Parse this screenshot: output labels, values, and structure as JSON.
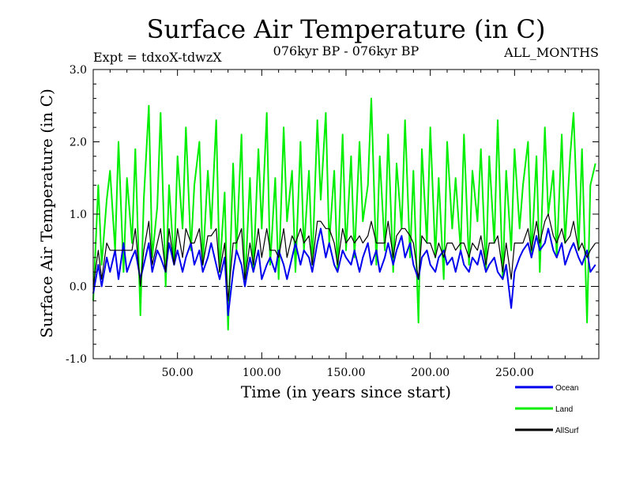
{
  "chart_data": {
    "type": "line",
    "title": "Surface Air Temperature (in C)",
    "subtitle_left": "Expt = tdxoX-tdwzX",
    "subtitle_center": "076kyr BP - 076kyr BP",
    "subtitle_right": "ALL_MONTHS",
    "xlabel": "Time (in years since start)",
    "ylabel": "Surface Air Temperature (in C)",
    "xlim": [
      0,
      300
    ],
    "ylim": [
      -1.0,
      3.0
    ],
    "xticks": [
      50,
      100,
      150,
      200,
      250
    ],
    "xtick_labels": [
      "50.00",
      "100.00",
      "150.00",
      "200.00",
      "250.00"
    ],
    "yticks": [
      -1,
      0,
      1,
      2,
      3
    ],
    "ytick_labels": [
      "-1.0",
      "0.0",
      "1.0",
      "2.0",
      "3.0"
    ],
    "zero_line": true,
    "grid": false,
    "legend_position": "bottom-right",
    "series": [
      {
        "name": "Land",
        "color": "#00ee00",
        "x": [
          0,
          3,
          5,
          8,
          10,
          13,
          15,
          18,
          20,
          23,
          25,
          28,
          30,
          33,
          35,
          38,
          40,
          43,
          45,
          48,
          50,
          53,
          55,
          58,
          60,
          63,
          65,
          68,
          70,
          73,
          75,
          78,
          80,
          83,
          85,
          88,
          90,
          93,
          95,
          98,
          100,
          103,
          105,
          108,
          110,
          113,
          115,
          118,
          120,
          123,
          125,
          128,
          130,
          133,
          135,
          138,
          140,
          143,
          145,
          148,
          150,
          153,
          155,
          158,
          160,
          163,
          165,
          168,
          170,
          173,
          175,
          178,
          180,
          183,
          185,
          188,
          190,
          193,
          195,
          198,
          200,
          203,
          205,
          208,
          210,
          213,
          215,
          218,
          220,
          223,
          225,
          228,
          230,
          233,
          235,
          238,
          240,
          243,
          245,
          248,
          250,
          253,
          255,
          258,
          260,
          263,
          265,
          268,
          270,
          273,
          275,
          278,
          280,
          283,
          285,
          288,
          290,
          293,
          295,
          298
        ],
        "values": [
          -0.2,
          1.4,
          0.3,
          1.2,
          1.6,
          0.5,
          2.0,
          0.2,
          1.5,
          0.6,
          1.9,
          -0.4,
          1.2,
          2.5,
          0.4,
          1.1,
          2.4,
          0.0,
          1.4,
          0.3,
          1.8,
          0.8,
          2.2,
          0.5,
          1.4,
          2.0,
          0.3,
          1.6,
          0.8,
          2.3,
          0.2,
          1.3,
          -0.6,
          1.7,
          0.5,
          2.1,
          0.0,
          1.5,
          0.2,
          1.9,
          0.8,
          2.4,
          0.3,
          1.5,
          0.1,
          2.2,
          0.9,
          1.6,
          0.2,
          2.0,
          0.5,
          1.6,
          0.3,
          2.3,
          1.2,
          2.4,
          0.6,
          1.6,
          0.2,
          2.1,
          0.5,
          1.8,
          0.4,
          2.0,
          0.9,
          1.4,
          2.6,
          0.3,
          1.8,
          0.5,
          2.1,
          0.2,
          1.7,
          0.8,
          2.3,
          0.4,
          1.6,
          -0.5,
          1.9,
          0.6,
          2.2,
          0.4,
          1.5,
          0.1,
          2.0,
          0.8,
          1.5,
          0.5,
          2.1,
          0.3,
          1.6,
          0.9,
          1.9,
          0.2,
          1.8,
          0.6,
          2.3,
          0.1,
          1.6,
          0.5,
          1.9,
          0.8,
          1.4,
          2.0,
          0.4,
          1.8,
          0.2,
          2.2,
          1.0,
          1.6,
          0.4,
          2.1,
          0.6,
          1.8,
          2.4,
          0.5,
          1.9,
          -0.5,
          1.4,
          1.7
        ]
      },
      {
        "name": "Ocean",
        "color": "#0000ee",
        "x": [
          0,
          3,
          5,
          8,
          10,
          13,
          15,
          18,
          20,
          23,
          25,
          28,
          30,
          33,
          35,
          38,
          40,
          43,
          45,
          48,
          50,
          53,
          55,
          58,
          60,
          63,
          65,
          68,
          70,
          73,
          75,
          78,
          80,
          83,
          85,
          88,
          90,
          93,
          95,
          98,
          100,
          103,
          105,
          108,
          110,
          113,
          115,
          118,
          120,
          123,
          125,
          128,
          130,
          133,
          135,
          138,
          140,
          143,
          145,
          148,
          150,
          153,
          155,
          158,
          160,
          163,
          165,
          168,
          170,
          173,
          175,
          178,
          180,
          183,
          185,
          188,
          190,
          193,
          195,
          198,
          200,
          203,
          205,
          208,
          210,
          213,
          215,
          218,
          220,
          223,
          225,
          228,
          230,
          233,
          235,
          238,
          240,
          243,
          245,
          248,
          250,
          253,
          255,
          258,
          260,
          263,
          265,
          268,
          270,
          273,
          275,
          278,
          280,
          283,
          285,
          288,
          290,
          293,
          295,
          298
        ],
        "values": [
          -0.1,
          0.3,
          0.0,
          0.4,
          0.2,
          0.5,
          0.1,
          0.6,
          0.2,
          0.4,
          0.5,
          0.1,
          0.3,
          0.6,
          0.2,
          0.5,
          0.4,
          0.2,
          0.6,
          0.3,
          0.5,
          0.2,
          0.4,
          0.6,
          0.3,
          0.5,
          0.2,
          0.4,
          0.6,
          0.3,
          0.1,
          0.4,
          -0.4,
          0.2,
          0.5,
          0.3,
          0.0,
          0.4,
          0.2,
          0.5,
          0.1,
          0.3,
          0.4,
          0.2,
          0.5,
          0.3,
          0.1,
          0.4,
          0.6,
          0.3,
          0.5,
          0.4,
          0.2,
          0.6,
          0.8,
          0.4,
          0.6,
          0.3,
          0.2,
          0.5,
          0.4,
          0.3,
          0.5,
          0.2,
          0.4,
          0.6,
          0.3,
          0.5,
          0.2,
          0.4,
          0.6,
          0.3,
          0.5,
          0.7,
          0.4,
          0.6,
          0.3,
          0.1,
          0.4,
          0.5,
          0.3,
          0.2,
          0.4,
          0.5,
          0.3,
          0.4,
          0.2,
          0.5,
          0.3,
          0.2,
          0.4,
          0.3,
          0.5,
          0.2,
          0.3,
          0.4,
          0.2,
          0.1,
          0.3,
          -0.3,
          0.2,
          0.4,
          0.5,
          0.6,
          0.4,
          0.7,
          0.5,
          0.6,
          0.8,
          0.5,
          0.4,
          0.6,
          0.3,
          0.5,
          0.6,
          0.4,
          0.3,
          0.5,
          0.2,
          0.3
        ]
      },
      {
        "name": "AllSurf",
        "color": "#000000",
        "x": [
          0,
          3,
          5,
          8,
          10,
          13,
          15,
          18,
          20,
          23,
          25,
          28,
          30,
          33,
          35,
          38,
          40,
          43,
          45,
          48,
          50,
          53,
          55,
          58,
          60,
          63,
          65,
          68,
          70,
          73,
          75,
          78,
          80,
          83,
          85,
          88,
          90,
          93,
          95,
          98,
          100,
          103,
          105,
          108,
          110,
          113,
          115,
          118,
          120,
          123,
          125,
          128,
          130,
          133,
          135,
          138,
          140,
          143,
          145,
          148,
          150,
          153,
          155,
          158,
          160,
          163,
          165,
          168,
          170,
          173,
          175,
          178,
          180,
          183,
          185,
          188,
          190,
          193,
          195,
          198,
          200,
          203,
          205,
          208,
          210,
          213,
          215,
          218,
          220,
          223,
          225,
          228,
          230,
          233,
          235,
          238,
          240,
          243,
          245,
          248,
          250,
          253,
          255,
          258,
          260,
          263,
          265,
          268,
          270,
          273,
          275,
          278,
          280,
          283,
          285,
          288,
          290,
          293,
          295,
          298
        ],
        "values": [
          0.0,
          0.5,
          0.1,
          0.6,
          0.5,
          0.5,
          0.5,
          0.5,
          0.5,
          0.5,
          0.8,
          0.0,
          0.5,
          0.9,
          0.3,
          0.6,
          0.8,
          0.2,
          0.8,
          0.3,
          0.8,
          0.4,
          0.8,
          0.6,
          0.6,
          0.8,
          0.3,
          0.7,
          0.7,
          0.8,
          0.2,
          0.6,
          -0.2,
          0.6,
          0.6,
          0.8,
          0.1,
          0.6,
          0.3,
          0.8,
          0.4,
          0.8,
          0.5,
          0.5,
          0.4,
          0.8,
          0.4,
          0.7,
          0.6,
          0.8,
          0.6,
          0.7,
          0.3,
          0.9,
          0.9,
          0.8,
          0.8,
          0.6,
          0.3,
          0.8,
          0.6,
          0.7,
          0.6,
          0.7,
          0.6,
          0.7,
          0.9,
          0.6,
          0.6,
          0.6,
          0.9,
          0.4,
          0.7,
          0.8,
          0.8,
          0.7,
          0.6,
          0.1,
          0.7,
          0.6,
          0.6,
          0.4,
          0.6,
          0.4,
          0.6,
          0.6,
          0.5,
          0.6,
          0.6,
          0.4,
          0.6,
          0.5,
          0.7,
          0.3,
          0.6,
          0.6,
          0.7,
          0.2,
          0.6,
          0.1,
          0.6,
          0.6,
          0.6,
          0.8,
          0.5,
          0.9,
          0.6,
          0.9,
          1.0,
          0.7,
          0.6,
          0.8,
          0.6,
          0.7,
          0.9,
          0.5,
          0.6,
          0.4,
          0.5,
          0.6
        ]
      }
    ]
  }
}
